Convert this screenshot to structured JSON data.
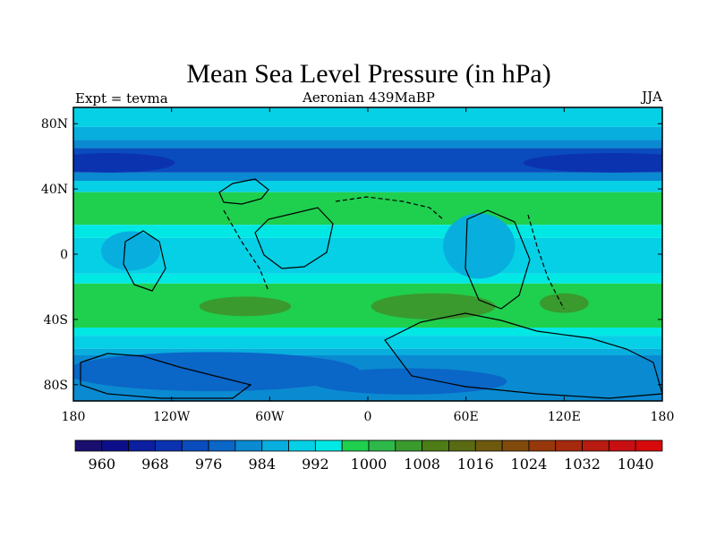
{
  "chart_data": {
    "type": "heatmap",
    "title": "Mean Sea Level Pressure (in hPa)",
    "left_label": "Expt = tevma",
    "subtitle": "Aeronian 439MaBP",
    "season": "JJA",
    "x_range": [
      -180,
      180
    ],
    "y_range": [
      -90,
      90
    ],
    "x_tick_values": [
      -180,
      -120,
      -60,
      0,
      60,
      120,
      180
    ],
    "x_tick_labels": [
      "180",
      "120W",
      "60W",
      "0",
      "60E",
      "120E",
      "180"
    ],
    "y_tick_values": [
      80,
      40,
      0,
      -40,
      -80
    ],
    "y_tick_labels": [
      "80N",
      "40N",
      "0",
      "40S",
      "80S"
    ],
    "colorbar_levels": [
      956,
      960,
      964,
      968,
      972,
      976,
      980,
      984,
      988,
      992,
      996,
      1000,
      1004,
      1008,
      1012,
      1016,
      1020,
      1024,
      1028,
      1032,
      1036,
      1040,
      1044
    ],
    "colorbar_labels": [
      "960",
      "968",
      "976",
      "984",
      "992",
      "1000",
      "1008",
      "1016",
      "1024",
      "1032",
      "1040"
    ],
    "colorbar_colors": [
      "#1a0f6e",
      "#0d0f8a",
      "#0b1fa0",
      "#0b33b0",
      "#0a4cbd",
      "#0a66c7",
      "#0a8ad1",
      "#08aede",
      "#06d0e6",
      "#00e8e4",
      "#1fcf4e",
      "#2eb84a",
      "#3a9a2e",
      "#4e7d17",
      "#5a6a12",
      "#6e5a0e",
      "#824a0c",
      "#96380c",
      "#a62a0e",
      "#b81c10",
      "#c80f12",
      "#d60a0a"
    ],
    "zonal_bands": [
      {
        "lat_from": 90,
        "lat_to": 78,
        "level": 988
      },
      {
        "lat_from": 78,
        "lat_to": 70,
        "level": 984
      },
      {
        "lat_from": 70,
        "lat_to": 65,
        "level": 980
      },
      {
        "lat_from": 65,
        "lat_to": 50,
        "level": 972
      },
      {
        "lat_from": 50,
        "lat_to": 45,
        "level": 980
      },
      {
        "lat_from": 45,
        "lat_to": 38,
        "level": 988
      },
      {
        "lat_from": 38,
        "lat_to": 18,
        "level": 996
      },
      {
        "lat_from": 18,
        "lat_to": 10,
        "level": 992
      },
      {
        "lat_from": 10,
        "lat_to": -12,
        "level": 988
      },
      {
        "lat_from": -12,
        "lat_to": -18,
        "level": 992
      },
      {
        "lat_from": -18,
        "lat_to": -45,
        "level": 996
      },
      {
        "lat_from": -45,
        "lat_to": -50,
        "level": 992
      },
      {
        "lat_from": -50,
        "lat_to": -58,
        "level": 988
      },
      {
        "lat_from": -58,
        "lat_to": -62,
        "level": 984
      },
      {
        "lat_from": -62,
        "lat_to": -90,
        "level": 980
      }
    ],
    "features": [
      {
        "level": 968,
        "lon": -158,
        "lat": 56,
        "rlon": 40,
        "rlat": 6
      },
      {
        "level": 968,
        "lon": 150,
        "lat": 56,
        "rlon": 55,
        "rlat": 6
      },
      {
        "level": 976,
        "lon": -95,
        "lat": -72,
        "rlon": 90,
        "rlat": 12
      },
      {
        "level": 976,
        "lon": 25,
        "lat": -78,
        "rlon": 60,
        "rlat": 8
      },
      {
        "level": 984,
        "lon": -145,
        "lat": 2,
        "rlon": 18,
        "rlat": 12
      },
      {
        "level": 984,
        "lon": 68,
        "lat": 5,
        "rlon": 22,
        "rlat": 20
      },
      {
        "level": 1004,
        "lon": -75,
        "lat": -32,
        "rlon": 28,
        "rlat": 6
      },
      {
        "level": 1004,
        "lon": 40,
        "lat": -32,
        "rlon": 38,
        "rlat": 8
      },
      {
        "level": 1004,
        "lon": 120,
        "lat": -30,
        "rlon": 15,
        "rlat": 6
      }
    ]
  }
}
